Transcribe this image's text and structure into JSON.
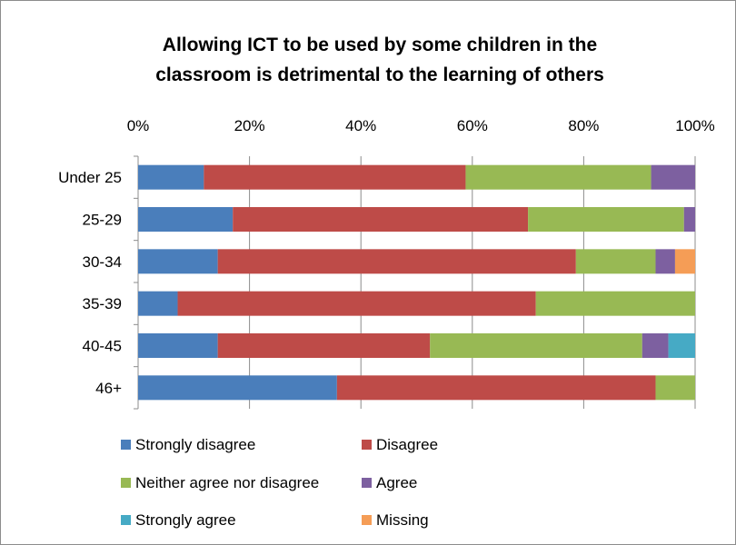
{
  "chart_data": {
    "type": "bar",
    "orientation": "horizontal",
    "stacked": true,
    "percent_stacked": true,
    "title": "Allowing ICT to be used by some children in the classroom is detrimental to the learning of others",
    "title_lines": [
      "Allowing ICT to be used by some children in the",
      "classroom is detrimental to the learning of others"
    ],
    "xlim": [
      0,
      100
    ],
    "x_ticks": [
      "0%",
      "20%",
      "40%",
      "60%",
      "80%",
      "100%"
    ],
    "x_tick_values": [
      0,
      20,
      40,
      60,
      80,
      100
    ],
    "x_axis_position": "top",
    "grid": true,
    "legend_position": "bottom",
    "categories": [
      "Under 25",
      "25-29",
      "30-34",
      "35-39",
      "40-45",
      "46+"
    ],
    "series": [
      {
        "name": "Strongly disagree",
        "color": "#4a7ebb",
        "values": [
          11.8,
          17.0,
          14.3,
          7.1,
          14.3,
          35.7
        ]
      },
      {
        "name": "Disagree",
        "color": "#be4b48",
        "values": [
          47.0,
          53.0,
          64.3,
          64.3,
          38.1,
          57.2
        ]
      },
      {
        "name": "Neither agree nor disagree",
        "color": "#98b954",
        "values": [
          33.3,
          28.0,
          14.3,
          28.6,
          38.1,
          7.1
        ]
      },
      {
        "name": "Agree",
        "color": "#7d60a0",
        "values": [
          7.9,
          2.0,
          3.5,
          0,
          4.7,
          0
        ]
      },
      {
        "name": "Strongly agree",
        "color": "#46aac5",
        "values": [
          0,
          0,
          0,
          0,
          4.8,
          0
        ]
      },
      {
        "name": "Missing",
        "color": "#f59d56",
        "values": [
          0,
          0,
          3.6,
          0,
          0,
          0
        ]
      }
    ]
  }
}
